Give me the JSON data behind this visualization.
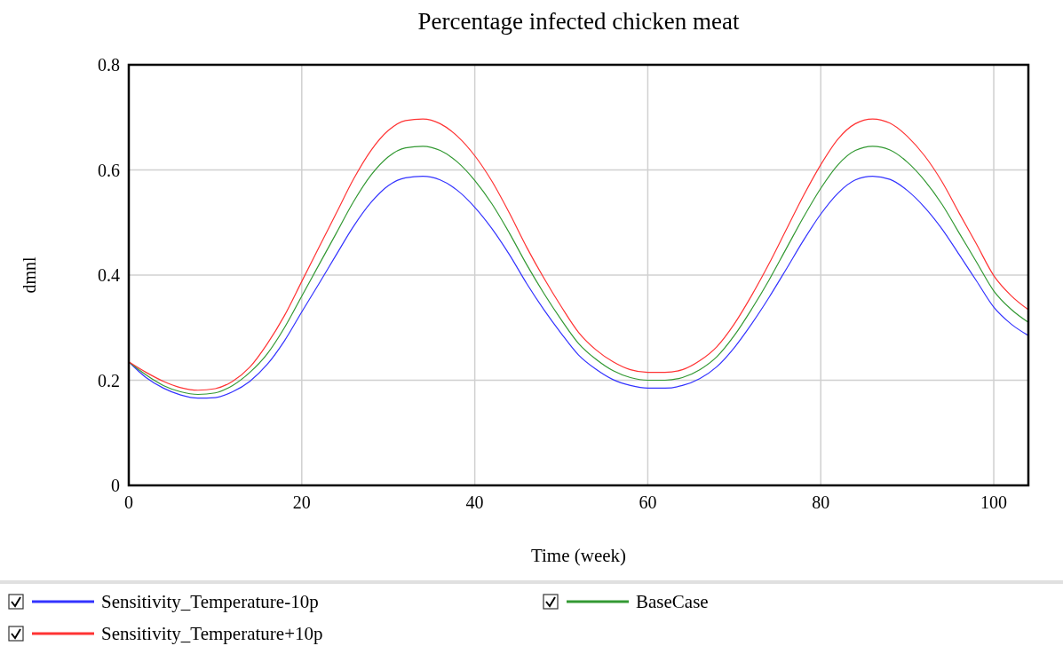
{
  "chart_data": {
    "type": "line",
    "title": "Percentage infected chicken meat",
    "xlabel": "Time (week)",
    "ylabel": "dmnl",
    "x": [
      0,
      2,
      4,
      6,
      8,
      10,
      12,
      14,
      16,
      18,
      20,
      22,
      24,
      26,
      28,
      30,
      32,
      34,
      36,
      38,
      40,
      42,
      44,
      46,
      48,
      50,
      52,
      54,
      56,
      58,
      60,
      62,
      64,
      66,
      68,
      70,
      72,
      74,
      76,
      78,
      80,
      82,
      84,
      86,
      88,
      90,
      92,
      94,
      96,
      98,
      100,
      102,
      104
    ],
    "series": [
      {
        "name": "Sensitivity_Temperature-10p",
        "color": "#3333ff",
        "values": [
          0.235,
          0.205,
          0.185,
          0.172,
          0.166,
          0.167,
          0.178,
          0.198,
          0.23,
          0.275,
          0.33,
          0.384,
          0.439,
          0.493,
          0.538,
          0.57,
          0.585,
          0.588,
          0.581,
          0.561,
          0.529,
          0.488,
          0.439,
          0.384,
          0.334,
          0.289,
          0.248,
          0.221,
          0.201,
          0.19,
          0.185,
          0.185,
          0.19,
          0.203,
          0.226,
          0.262,
          0.307,
          0.357,
          0.411,
          0.466,
          0.516,
          0.556,
          0.581,
          0.588,
          0.582,
          0.561,
          0.529,
          0.488,
          0.439,
          0.389,
          0.339,
          0.307,
          0.285
        ]
      },
      {
        "name": "BaseCase",
        "color": "#339933",
        "values": [
          0.235,
          0.21,
          0.19,
          0.178,
          0.173,
          0.176,
          0.19,
          0.215,
          0.25,
          0.3,
          0.36,
          0.42,
          0.48,
          0.54,
          0.59,
          0.625,
          0.642,
          0.645,
          0.637,
          0.615,
          0.58,
          0.535,
          0.48,
          0.42,
          0.365,
          0.315,
          0.27,
          0.24,
          0.218,
          0.205,
          0.2,
          0.2,
          0.205,
          0.22,
          0.245,
          0.285,
          0.335,
          0.39,
          0.45,
          0.51,
          0.565,
          0.61,
          0.637,
          0.645,
          0.638,
          0.615,
          0.58,
          0.535,
          0.48,
          0.425,
          0.37,
          0.335,
          0.31
        ]
      },
      {
        "name": "Sensitivity_Temperature+10p",
        "color": "#ff3333",
        "values": [
          0.235,
          0.215,
          0.198,
          0.186,
          0.181,
          0.184,
          0.198,
          0.225,
          0.269,
          0.323,
          0.388,
          0.453,
          0.518,
          0.583,
          0.637,
          0.675,
          0.694,
          0.697,
          0.688,
          0.664,
          0.627,
          0.578,
          0.518,
          0.453,
          0.394,
          0.34,
          0.291,
          0.258,
          0.235,
          0.22,
          0.215,
          0.215,
          0.22,
          0.237,
          0.264,
          0.307,
          0.361,
          0.421,
          0.486,
          0.551,
          0.61,
          0.659,
          0.688,
          0.697,
          0.689,
          0.664,
          0.627,
          0.578,
          0.518,
          0.459,
          0.399,
          0.361,
          0.334
        ]
      }
    ],
    "xlim": [
      0,
      104
    ],
    "xticks": [
      0,
      20,
      40,
      60,
      80,
      100
    ],
    "ylim": [
      0,
      0.8
    ],
    "yticks": [
      0,
      0.2,
      0.4,
      0.6,
      0.8
    ],
    "grid": true,
    "legend": "bottom",
    "marker": "none",
    "line_style": "solid"
  }
}
